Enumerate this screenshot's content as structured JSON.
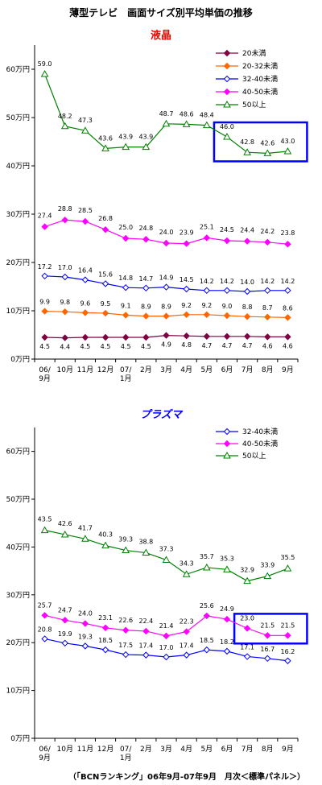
{
  "title": "薄型テレビ　画面サイズ別平均単価の推移",
  "footer": "（「BCNランキング」06年9月-07年9月　月次＜標準パネル＞）",
  "colors": {
    "lt20": "#800040",
    "s20_32": "#ff6600",
    "s32_40": "#0000ff",
    "s40_50": "#ff00ff",
    "s50": "#008000",
    "highlight": "#0000ff"
  },
  "chart_data": [
    {
      "type": "line",
      "subtitle": "液晶",
      "categories": [
        "06/\n9月",
        "10月",
        "11月",
        "12月",
        "07/\n1月",
        "2月",
        "3月",
        "4月",
        "5月",
        "6月",
        "7月",
        "8月",
        "9月"
      ],
      "yticks": [
        "0万円",
        "10万円",
        "20万円",
        "30万円",
        "40万円",
        "50万円",
        "60万円"
      ],
      "ylim": [
        0,
        65
      ],
      "legend_position": "top-right",
      "series": [
        {
          "name": "20未満",
          "marker": "diamond",
          "color_key": "lt20",
          "values": [
            4.5,
            4.4,
            4.5,
            4.5,
            4.5,
            4.5,
            4.9,
            4.8,
            4.7,
            4.7,
            4.7,
            4.6,
            4.6
          ]
        },
        {
          "name": "20-32未満",
          "marker": "diamond",
          "color_key": "s20_32",
          "values": [
            9.9,
            9.8,
            9.6,
            9.5,
            9.1,
            8.9,
            8.9,
            9.2,
            9.2,
            9.0,
            8.8,
            8.7,
            8.6
          ]
        },
        {
          "name": "32-40未満",
          "marker": "diamond-open",
          "color_key": "s32_40",
          "values": [
            17.2,
            17.0,
            16.4,
            15.6,
            14.8,
            14.7,
            14.9,
            14.5,
            14.2,
            14.2,
            14.0,
            14.2,
            14.2
          ]
        },
        {
          "name": "40-50未満",
          "marker": "diamond",
          "color_key": "s40_50",
          "values": [
            27.4,
            28.8,
            28.5,
            26.8,
            25.0,
            24.8,
            24.0,
            23.9,
            25.1,
            24.5,
            24.4,
            24.2,
            23.8
          ]
        },
        {
          "name": "50以上",
          "marker": "triangle",
          "color_key": "s50",
          "values": [
            59.0,
            48.2,
            47.3,
            43.6,
            43.9,
            43.9,
            48.7,
            48.6,
            48.4,
            46.0,
            42.8,
            42.6,
            43.0
          ]
        }
      ],
      "highlight_range": {
        "x_from": "6月",
        "x_to": "9月",
        "series": "50以上"
      }
    },
    {
      "type": "line",
      "subtitle": "プラズマ",
      "categories": [
        "06/\n9月",
        "10月",
        "11月",
        "12月",
        "07/\n1月",
        "2月",
        "3月",
        "4月",
        "5月",
        "6月",
        "7月",
        "8月",
        "9月"
      ],
      "yticks": [
        "0万円",
        "10万円",
        "20万円",
        "30万円",
        "40万円",
        "50万円",
        "60万円"
      ],
      "ylim": [
        0,
        65
      ],
      "legend_position": "top-right",
      "series": [
        {
          "name": "32-40未満",
          "marker": "diamond-open",
          "color_key": "s32_40",
          "values": [
            20.8,
            19.9,
            19.3,
            18.5,
            17.5,
            17.4,
            17.0,
            17.4,
            18.5,
            18.2,
            17.1,
            16.7,
            16.2
          ]
        },
        {
          "name": "40-50未満",
          "marker": "diamond",
          "color_key": "s40_50",
          "values": [
            25.7,
            24.7,
            24.0,
            23.1,
            22.6,
            22.4,
            21.4,
            22.3,
            25.6,
            24.9,
            23.0,
            21.5,
            21.5
          ]
        },
        {
          "name": "50以上",
          "marker": "triangle",
          "color_key": "s50",
          "values": [
            43.5,
            42.6,
            41.7,
            40.3,
            39.3,
            38.8,
            37.3,
            34.3,
            35.7,
            35.3,
            32.9,
            33.9,
            35.5
          ]
        }
      ],
      "highlight_range": {
        "x_from": "7月",
        "x_to": "9月",
        "series": "40-50未満"
      }
    }
  ]
}
